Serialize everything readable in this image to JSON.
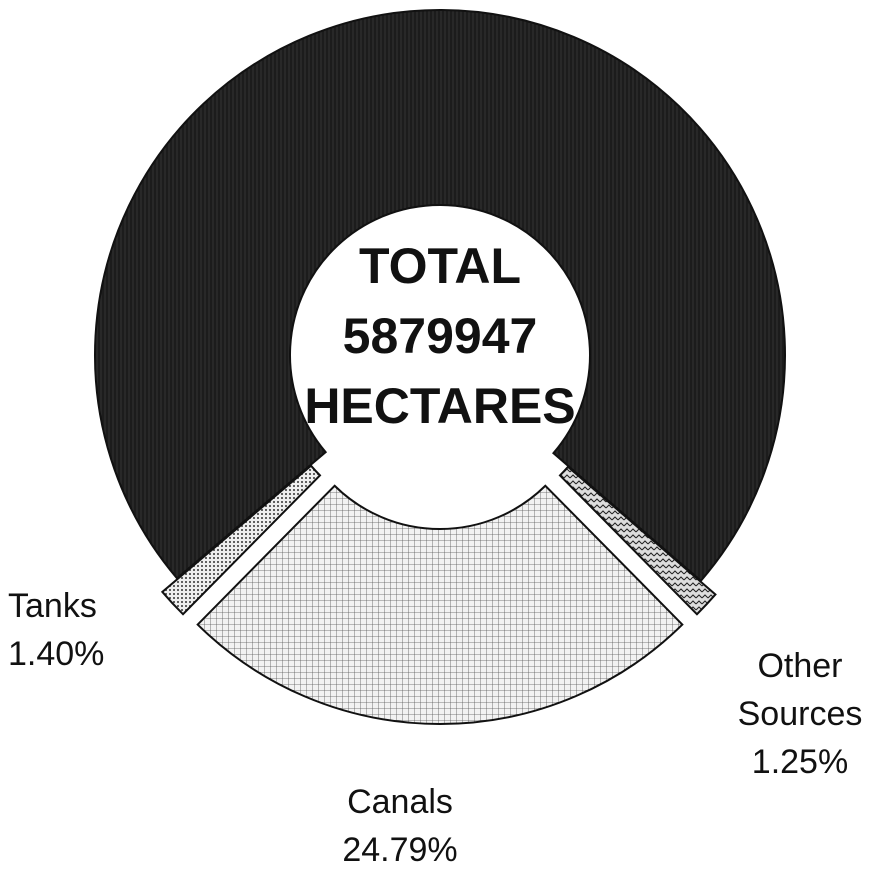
{
  "chart_data": {
    "type": "donut",
    "center_text": [
      "TOTAL",
      "5879947",
      "HECTARES"
    ],
    "categories": [
      "Canals",
      "Tanks",
      null,
      "Other Sources"
    ],
    "values": [
      24.79,
      1.4,
      72.56,
      1.25
    ],
    "value_labels": [
      "24.79%",
      "1.40%",
      null,
      "1.25%"
    ],
    "colors": [
      "#e6e6e6",
      "#d8d8d8",
      "#1c1c1c",
      "#9a9a9a"
    ]
  }
}
